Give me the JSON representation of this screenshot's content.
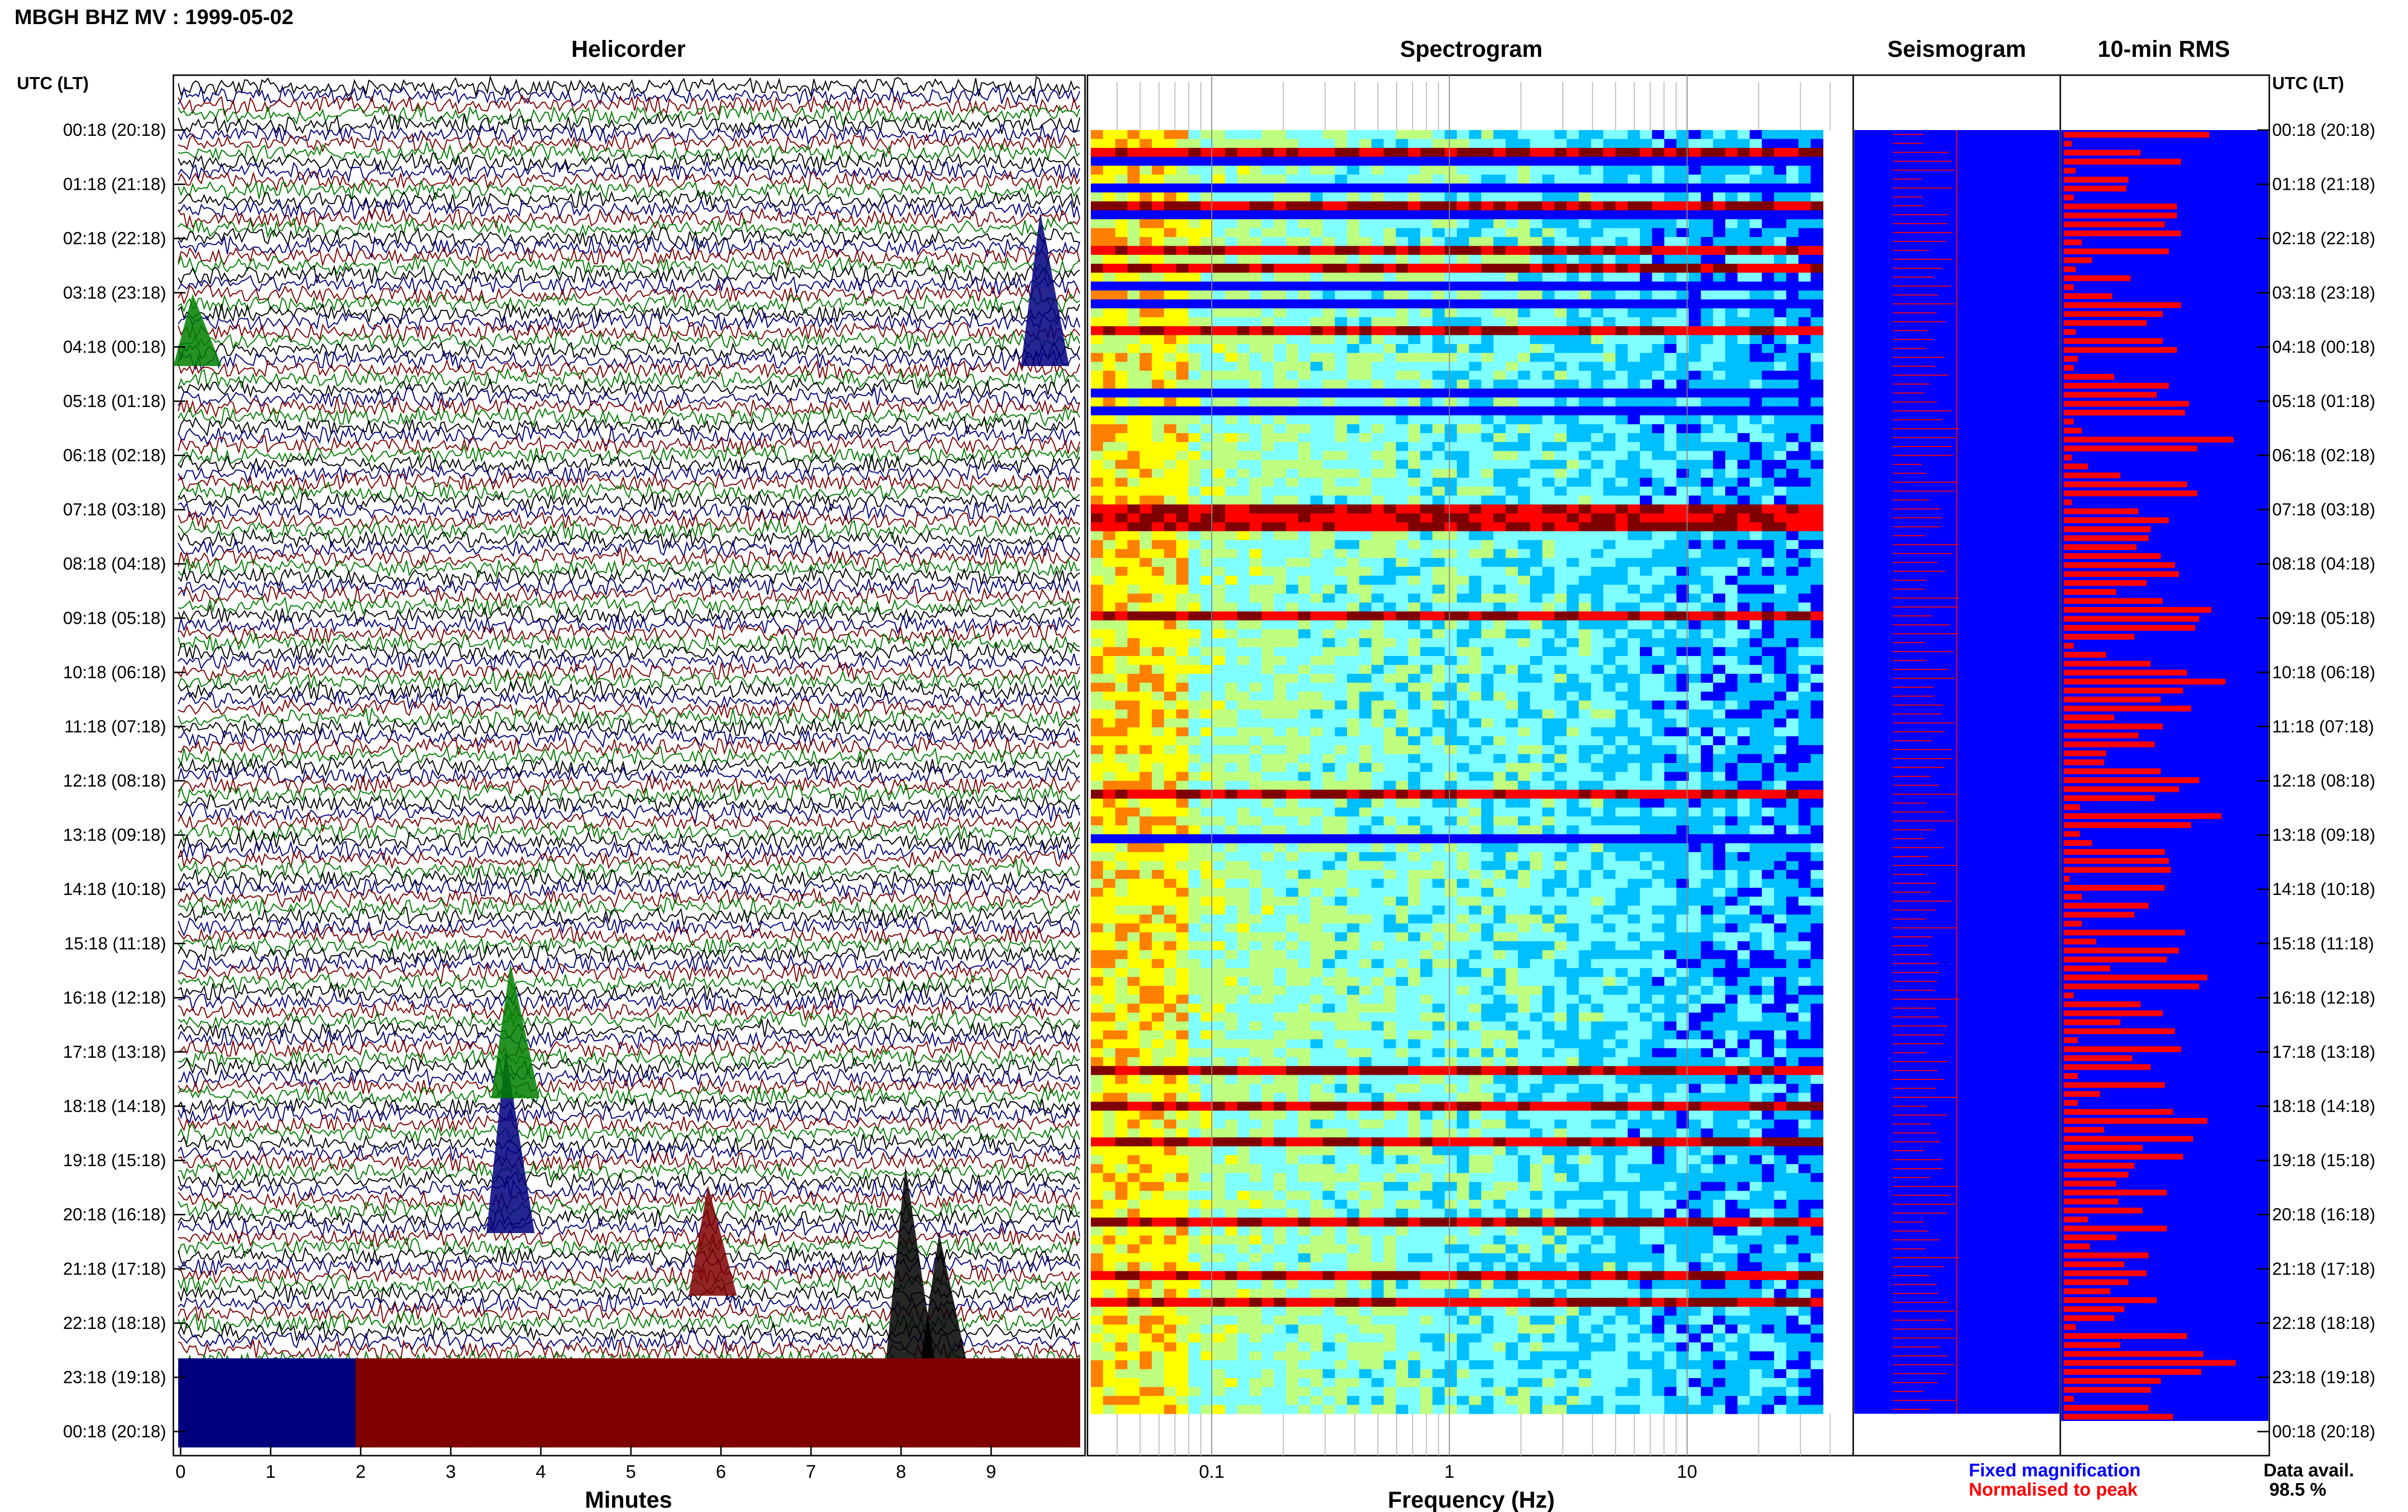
{
  "header": {
    "title": "MBGH BHZ MV : 1999-05-02"
  },
  "panels": {
    "helicorder": "Helicorder",
    "spectrogram": "Spectrogram",
    "seismogram": "Seismogram",
    "rms": "10-min RMS"
  },
  "axis": {
    "left_header": "UTC (LT)",
    "right_header": "UTC (LT)",
    "helicorder_xlabel": "Minutes",
    "spectrogram_xlabel": "Frequency (Hz)"
  },
  "legend": {
    "fixed": "Fixed magnification",
    "normalised": "Normalised to peak",
    "data_avail_label": "Data avail.",
    "data_avail_value": "98.5 %"
  },
  "colors": {
    "helicorder_traces": [
      "#000000",
      "#00007f",
      "#7f0000",
      "#007f00"
    ],
    "seismogram_fixed": "#0000ff",
    "seismogram_normalised": "#ff0000",
    "rms_bar": "#ff0000",
    "rms_background": "#0000ff",
    "legend_fixed": "#0000ff",
    "legend_normalised": "#ff0000"
  },
  "chart_data": [
    {
      "type": "line",
      "panel": "helicorder",
      "xlabel": "Minutes",
      "xlim": [
        0,
        10
      ],
      "x_ticks": [
        0,
        1,
        2,
        3,
        4,
        5,
        6,
        7,
        8,
        9
      ],
      "y_tick_labels": [
        "00:18 (20:18)",
        "01:18 (21:18)",
        "02:18 (22:18)",
        "03:18 (23:18)",
        "04:18 (00:18)",
        "05:18 (01:18)",
        "06:18 (02:18)",
        "07:18 (03:18)",
        "08:18 (04:18)",
        "09:18 (05:18)",
        "10:18 (06:18)",
        "11:18 (07:18)",
        "12:18 (08:18)",
        "13:18 (09:18)",
        "14:18 (10:18)",
        "15:18 (11:18)",
        "16:18 (12:18)",
        "17:18 (13:18)",
        "18:18 (14:18)",
        "19:18 (15:18)",
        "20:18 (16:18)",
        "21:18 (17:18)",
        "22:18 (18:18)",
        "23:18 (19:18)",
        "00:18 (20:18)"
      ],
      "rows": 144,
      "trace_colors_cycle": [
        "black",
        "blue",
        "red",
        "green"
      ]
    },
    {
      "type": "heatmap",
      "panel": "spectrogram",
      "xlabel": "Frequency (Hz)",
      "x_scale": "log",
      "xlim": [
        0.03,
        50
      ],
      "x_tick_labels": [
        "0.1",
        "1",
        "10"
      ],
      "x_tick_values": [
        0.1,
        1,
        10
      ],
      "rows": 144,
      "colormap": [
        "#00007f",
        "#0000ff",
        "#00bfff",
        "#7fffff",
        "#bfff7f",
        "#ffff00",
        "#ff7f00",
        "#ff0000",
        "#7f0000"
      ]
    },
    {
      "type": "bar",
      "panel": "10-min RMS",
      "orientation": "horizontal",
      "rows": 144,
      "values": [
        0.72,
        0.04,
        0.38,
        0.58,
        0.06,
        0.32,
        0.31,
        0.05,
        0.56,
        0.56,
        0.5,
        0.58,
        0.09,
        0.52,
        0.14,
        0.06,
        0.33,
        0.05,
        0.24,
        0.58,
        0.49,
        0.41,
        0.06,
        0.49,
        0.56,
        0.07,
        0.05,
        0.25,
        0.52,
        0.46,
        0.62,
        0.6,
        0.05,
        0.09,
        0.84,
        0.66,
        0.04,
        0.12,
        0.28,
        0.61,
        0.66,
        0.04,
        0.37,
        0.52,
        0.43,
        0.42,
        0.36,
        0.48,
        0.55,
        0.57,
        0.41,
        0.26,
        0.49,
        0.73,
        0.67,
        0.65,
        0.35,
        0.05,
        0.21,
        0.43,
        0.61,
        0.8,
        0.59,
        0.48,
        0.63,
        0.25,
        0.49,
        0.37,
        0.45,
        0.21,
        0.2,
        0.48,
        0.67,
        0.57,
        0.45,
        0.08,
        0.78,
        0.63,
        0.08,
        0.14,
        0.5,
        0.52,
        0.53,
        0.03,
        0.5,
        0.09,
        0.42,
        0.35,
        0.09,
        0.6,
        0.16,
        0.57,
        0.51,
        0.23,
        0.71,
        0.67,
        0.05,
        0.38,
        0.49,
        0.28,
        0.55,
        0.07,
        0.58,
        0.34,
        0.43,
        0.07,
        0.5,
        0.18,
        0.07,
        0.54,
        0.71,
        0.2,
        0.64,
        0.39,
        0.59,
        0.35,
        0.32,
        0.26,
        0.51,
        0.27,
        0.39,
        0.12,
        0.51,
        0.26,
        0.13,
        0.42,
        0.3,
        0.41,
        0.32,
        0.23,
        0.46,
        0.3,
        0.25,
        0.06,
        0.61,
        0.28,
        0.69,
        0.85,
        0.68,
        0.48,
        0.43,
        0.05,
        0.42,
        0.54
      ]
    }
  ]
}
